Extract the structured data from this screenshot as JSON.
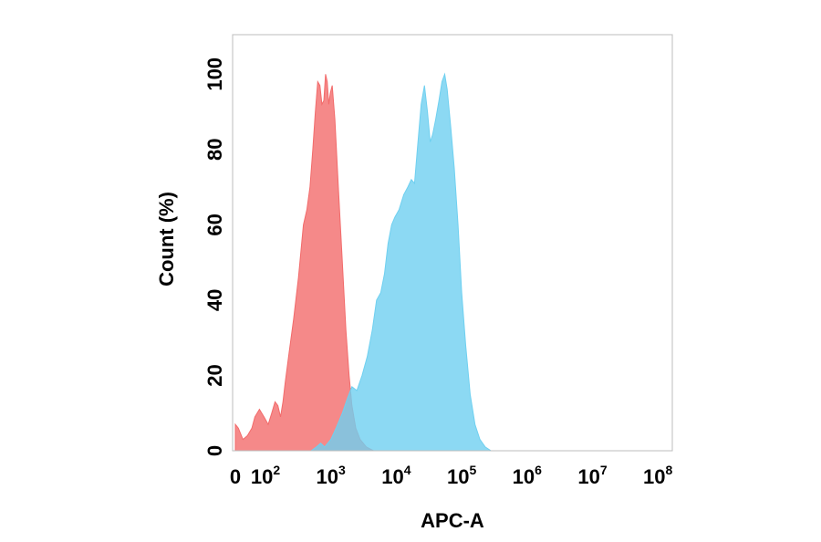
{
  "chart_data": {
    "type": "area",
    "title": "",
    "xlabel": "APC-A",
    "ylabel": "Count  (%)",
    "x_scale": "log",
    "xlim": [
      0,
      100000000
    ],
    "ylim": [
      0,
      110
    ],
    "grid": false,
    "y_ticks": [
      {
        "value": 0,
        "label": "0"
      },
      {
        "value": 20,
        "label": "20"
      },
      {
        "value": 40,
        "label": "40"
      },
      {
        "value": 60,
        "label": "60"
      },
      {
        "value": 80,
        "label": "80"
      },
      {
        "value": 100,
        "label": "100"
      }
    ],
    "x_ticks": [
      {
        "value": 0,
        "base": "0",
        "exp": ""
      },
      {
        "value": 100,
        "base": "10",
        "exp": "2"
      },
      {
        "value": 1000,
        "base": "10",
        "exp": "3"
      },
      {
        "value": 10000,
        "base": "10",
        "exp": "4"
      },
      {
        "value": 100000,
        "base": "10",
        "exp": "5"
      },
      {
        "value": 1000000,
        "base": "10",
        "exp": "6"
      },
      {
        "value": 10000000,
        "base": "10",
        "exp": "7"
      },
      {
        "value": 100000000,
        "base": "10",
        "exp": "8"
      }
    ],
    "series": [
      {
        "color": "#f26b6b",
        "points": [
          [
            0,
            7
          ],
          [
            10,
            6
          ],
          [
            25,
            3
          ],
          [
            40,
            4
          ],
          [
            55,
            6
          ],
          [
            65,
            9
          ],
          [
            80,
            11
          ],
          [
            95,
            9
          ],
          [
            110,
            7
          ],
          [
            125,
            10
          ],
          [
            140,
            13
          ],
          [
            155,
            12
          ],
          [
            170,
            9
          ],
          [
            185,
            13
          ],
          [
            200,
            18
          ],
          [
            230,
            26
          ],
          [
            270,
            35
          ],
          [
            320,
            46
          ],
          [
            380,
            60
          ],
          [
            430,
            64
          ],
          [
            480,
            70
          ],
          [
            530,
            80
          ],
          [
            580,
            90
          ],
          [
            630,
            98
          ],
          [
            680,
            97
          ],
          [
            730,
            92
          ],
          [
            780,
            93
          ],
          [
            830,
            100
          ],
          [
            880,
            98
          ],
          [
            930,
            92
          ],
          [
            980,
            95
          ],
          [
            1050,
            97
          ],
          [
            1150,
            88
          ],
          [
            1300,
            70
          ],
          [
            1500,
            50
          ],
          [
            1700,
            32
          ],
          [
            1900,
            20
          ],
          [
            2100,
            12
          ],
          [
            2400,
            6
          ],
          [
            2800,
            3
          ],
          [
            3500,
            1
          ],
          [
            4500,
            0
          ]
        ]
      },
      {
        "color": "#6fd0f0",
        "points": [
          [
            500,
            0
          ],
          [
            600,
            1
          ],
          [
            700,
            2
          ],
          [
            800,
            1
          ],
          [
            1000,
            3
          ],
          [
            1200,
            6
          ],
          [
            1500,
            10
          ],
          [
            1800,
            14
          ],
          [
            2100,
            17
          ],
          [
            2500,
            16
          ],
          [
            3000,
            20
          ],
          [
            3600,
            25
          ],
          [
            4300,
            32
          ],
          [
            5000,
            40
          ],
          [
            5800,
            42
          ],
          [
            6600,
            47
          ],
          [
            7500,
            55
          ],
          [
            8500,
            60
          ],
          [
            9500,
            62
          ],
          [
            11000,
            64
          ],
          [
            13000,
            68
          ],
          [
            15000,
            70
          ],
          [
            17000,
            72
          ],
          [
            19000,
            71
          ],
          [
            21000,
            80
          ],
          [
            24000,
            92
          ],
          [
            27000,
            97
          ],
          [
            30000,
            90
          ],
          [
            33000,
            82
          ],
          [
            36000,
            84
          ],
          [
            40000,
            88
          ],
          [
            45000,
            93
          ],
          [
            50000,
            98
          ],
          [
            55000,
            100
          ],
          [
            60000,
            96
          ],
          [
            68000,
            86
          ],
          [
            77000,
            75
          ],
          [
            88000,
            60
          ],
          [
            100000,
            42
          ],
          [
            115000,
            28
          ],
          [
            135000,
            15
          ],
          [
            160000,
            7
          ],
          [
            190000,
            3
          ],
          [
            230000,
            1
          ],
          [
            280000,
            0
          ]
        ]
      }
    ]
  }
}
